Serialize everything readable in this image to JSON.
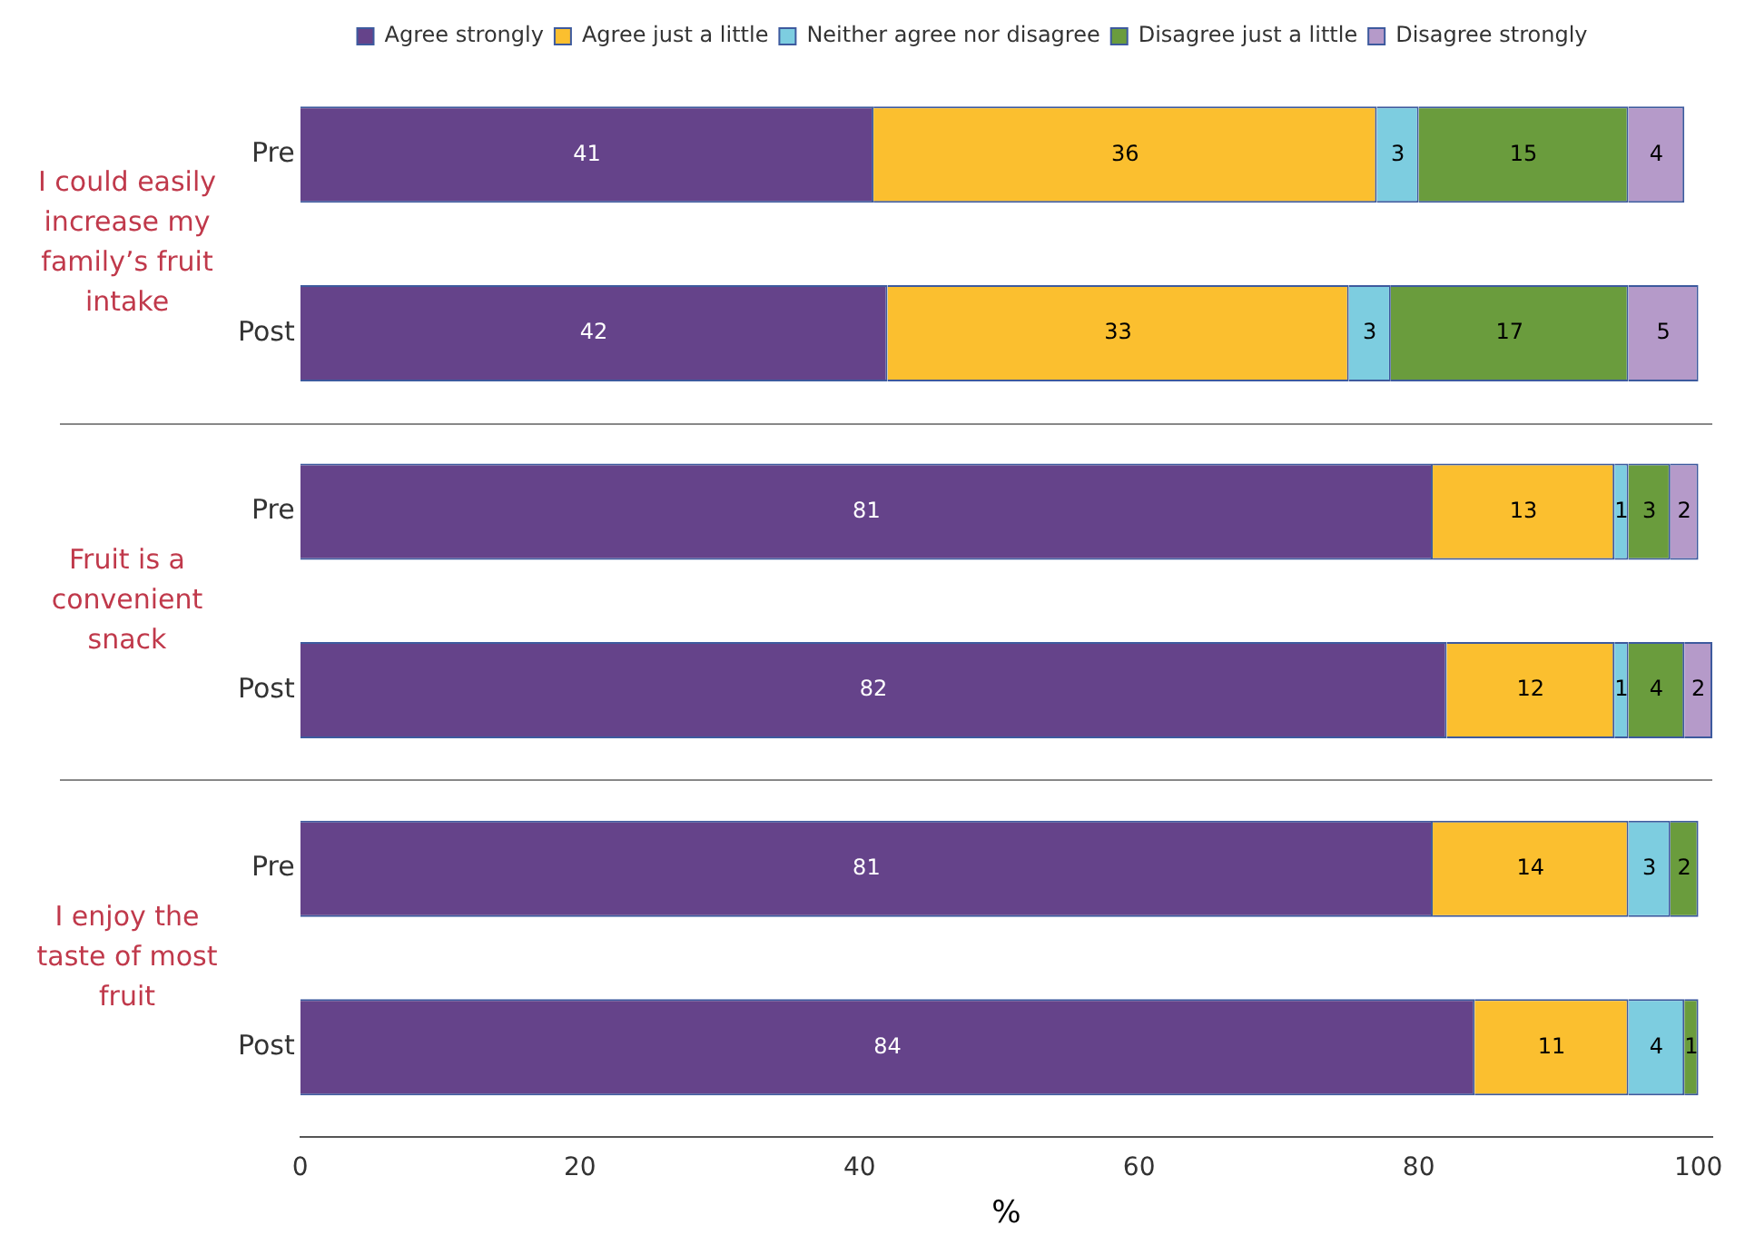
{
  "chart_data": {
    "type": "bar",
    "orientation": "horizontal",
    "stacked": true,
    "categories": [
      "Pre",
      "Post",
      "Pre",
      "Post",
      "Pre",
      "Post"
    ],
    "series": [
      {
        "name": "Agree strongly",
        "color": "#65438a",
        "values": [
          41,
          42,
          81,
          82,
          81,
          84
        ]
      },
      {
        "name": "Agree just a little",
        "color": "#fbbf2f",
        "values": [
          36,
          33,
          13,
          12,
          14,
          11
        ]
      },
      {
        "name": "Neither agree nor disagree",
        "color": "#7dcde0",
        "values": [
          3,
          3,
          1,
          1,
          3,
          4
        ]
      },
      {
        "name": "Disagree just a little",
        "color": "#6a9c3d",
        "values": [
          15,
          17,
          3,
          4,
          2,
          1
        ]
      },
      {
        "name": "Disagree strongly",
        "color": "#b59ac9",
        "values": [
          4,
          5,
          2,
          2,
          null,
          null
        ]
      }
    ],
    "xlabel": "%",
    "xlim": [
      0,
      101
    ],
    "xticks": [
      0,
      20,
      40,
      60,
      80,
      100
    ],
    "grid": false,
    "legend": "top",
    "data_labels": true,
    "annotations": [
      "I could easily increase my family’s fruit intake",
      "Fruit is a convenient snack",
      "I enjoy the taste of most fruit"
    ]
  }
}
